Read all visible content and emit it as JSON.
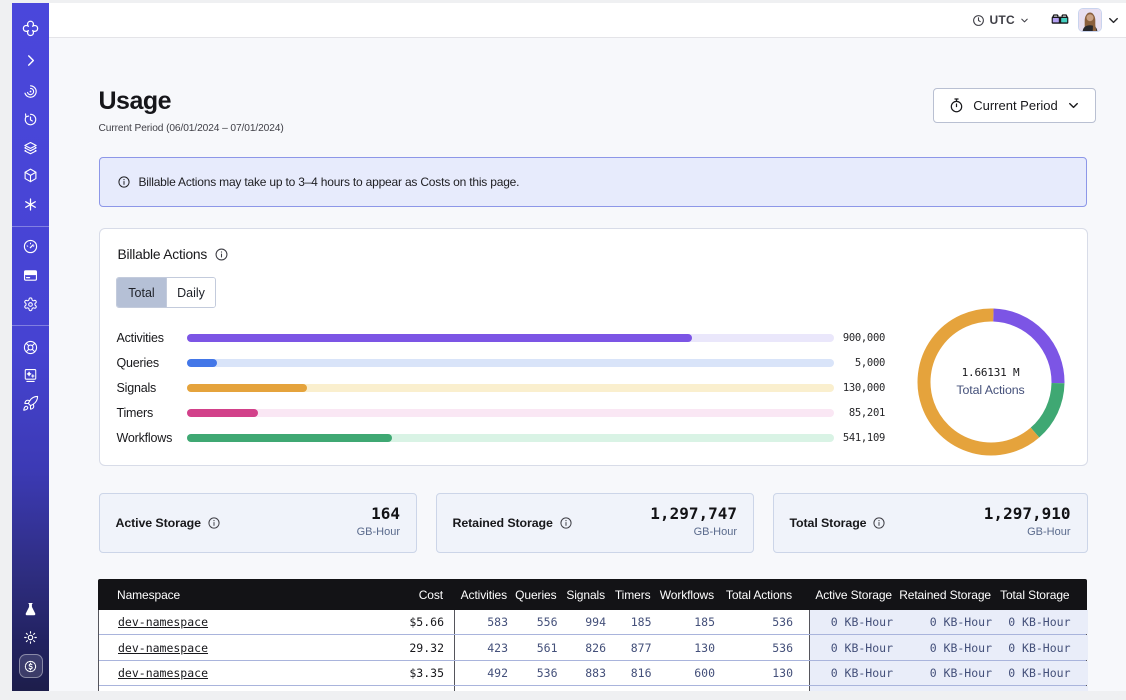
{
  "topbar": {
    "timezone": "UTC",
    "icons": [
      "clock-icon",
      "chevron-down-icon",
      "glasses-icon",
      "avatar",
      "chevron-down-icon"
    ]
  },
  "sidebar": {
    "top_icons": [
      "temporal-logo",
      "chevron-right-icon",
      "namespaces-icon",
      "history-clock-icon",
      "layers-icon",
      "cube-icon",
      "asterisk-icon"
    ],
    "mid_icons": [
      "gauge-icon",
      "credit-card-icon",
      "gear-icon"
    ],
    "lower_icons": [
      "lifebuoy-icon",
      "book-icon",
      "rocket-icon"
    ],
    "bottom_icons": [
      "flask-icon",
      "sun-icon"
    ],
    "active_bottom_icon": "dollar-badge-icon"
  },
  "page": {
    "title": "Usage",
    "subtitle": "Current Period (06/01/2024 – 07/01/2024)",
    "period_button": "Current Period"
  },
  "banner": {
    "text": "Billable Actions may take up to 3–4 hours to appear as Costs on this page."
  },
  "billable": {
    "title": "Billable Actions",
    "tabs": [
      {
        "label": "Total",
        "active": true
      },
      {
        "label": "Daily",
        "active": false
      }
    ]
  },
  "chart_data": [
    {
      "type": "bar",
      "orientation": "horizontal",
      "categories": [
        "Activities",
        "Queries",
        "Signals",
        "Timers",
        "Workflows"
      ],
      "values": [
        900000,
        5000,
        130000,
        85201,
        541109
      ],
      "value_labels": [
        "900,000",
        "5,000",
        "130,000",
        "85,201",
        "541,109"
      ],
      "bar_fractions": [
        0.781,
        0.047,
        0.186,
        0.111,
        0.317
      ],
      "bar_colors": [
        "#7c55e5",
        "#4377e8",
        "#e5a33c",
        "#d2418a",
        "#3fa873"
      ],
      "track_colors": [
        "#eae7fb",
        "#d9e4f9",
        "#faefce",
        "#fae7f4",
        "#d9f3e5"
      ],
      "title": "Billable Actions",
      "xlabel": "",
      "ylabel": "",
      "grid": false,
      "legend": false
    },
    {
      "type": "pie",
      "donut": true,
      "center_value": "1.66131 M",
      "center_label": "Total Actions",
      "segments": [
        {
          "color_name": "purple",
          "color": "#7c55e5",
          "start_deg": 2,
          "end_deg": 91,
          "fraction": 0.247
        },
        {
          "color_name": "green",
          "color": "#3fa873",
          "start_deg": 91,
          "end_deg": 139,
          "fraction": 0.133
        },
        {
          "color_name": "orange",
          "color": "#e5a33c",
          "start_deg": 139,
          "end_deg": 362,
          "fraction": 0.62
        }
      ]
    }
  ],
  "stats": [
    {
      "label": "Active Storage",
      "value": "164",
      "unit": "GB-Hour"
    },
    {
      "label": "Retained Storage",
      "value": "1,297,747",
      "unit": "GB-Hour"
    },
    {
      "label": "Total Storage",
      "value": "1,297,910",
      "unit": "GB-Hour"
    }
  ],
  "table": {
    "columns": [
      "Namespace",
      "Cost",
      "Activities",
      "Queries",
      "Signals",
      "Timers",
      "Workflows",
      "Total Actions",
      "Active Storage",
      "Retained Storage",
      "Total Storage"
    ],
    "rows": [
      {
        "namespace": "dev-namespace",
        "cost": "$5.66",
        "activities": "583",
        "queries": "556",
        "signals": "994",
        "timers": "185",
        "workflows": "185",
        "total_actions": "536",
        "active_storage": "0 KB-Hour",
        "retained_storage": "0 KB-Hour",
        "total_storage": "0 KB-Hour"
      },
      {
        "namespace": "dev-namespace",
        "cost": "29.32",
        "activities": "423",
        "queries": "561",
        "signals": "826",
        "timers": "877",
        "workflows": "130",
        "total_actions": "536",
        "active_storage": "0 KB-Hour",
        "retained_storage": "0 KB-Hour",
        "total_storage": "0 KB-Hour"
      },
      {
        "namespace": "dev-namespace",
        "cost": "$3.35",
        "activities": "492",
        "queries": "536",
        "signals": "883",
        "timers": "816",
        "workflows": "600",
        "total_actions": "130",
        "active_storage": "0 KB-Hour",
        "retained_storage": "0 KB-Hour",
        "total_storage": "0 KB-Hour"
      },
      {
        "namespace": "",
        "cost": "",
        "activities": "",
        "queries": "",
        "signals": "",
        "timers": "",
        "workflows": "",
        "total_actions": "",
        "active_storage": "",
        "retained_storage": "",
        "total_storage": ""
      }
    ]
  }
}
